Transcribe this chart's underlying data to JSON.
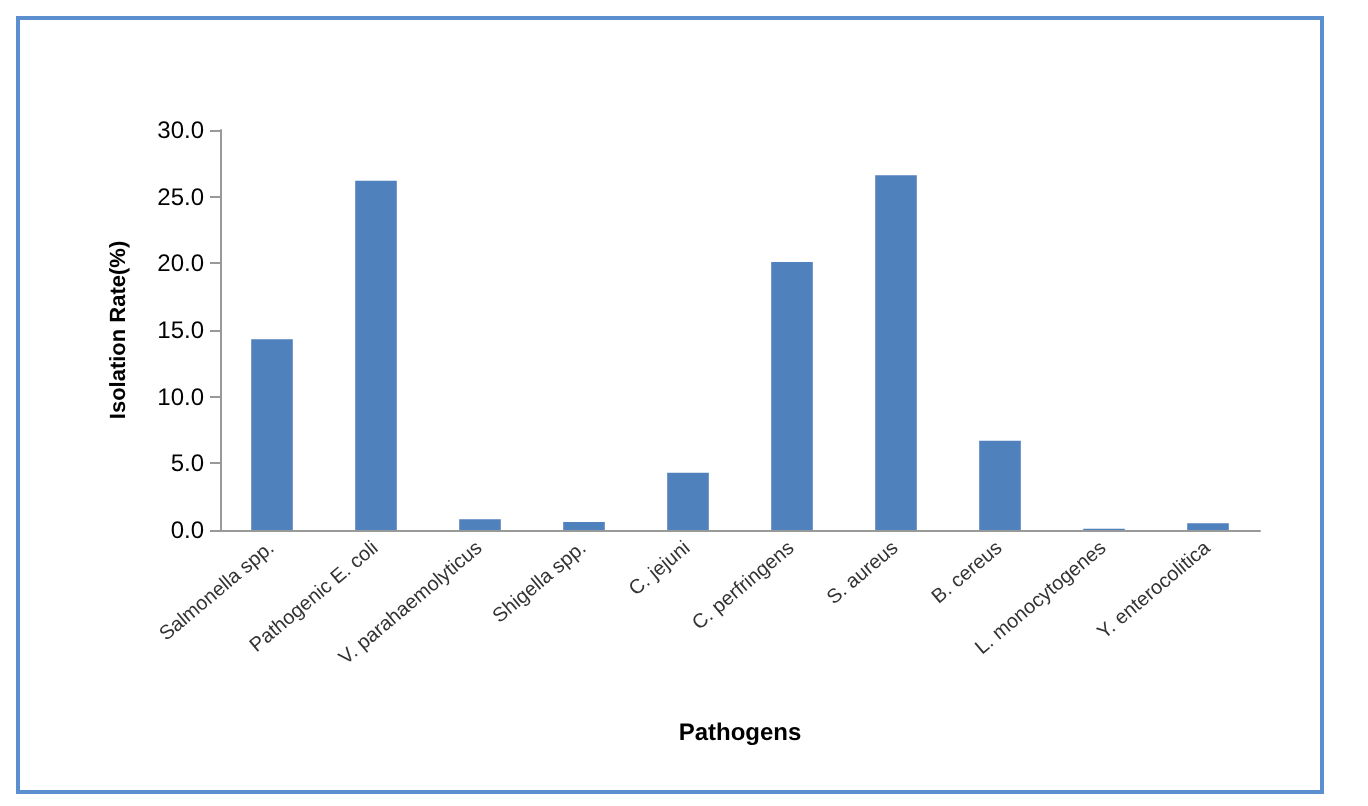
{
  "chart_data": {
    "type": "bar",
    "xlabel": "Pathogens",
    "ylabel": "Isolation Rate(%)",
    "categories": [
      "Salmonella spp.",
      "Pathogenic E. coli",
      "V. parahaemolyticus",
      "Shigella spp.",
      "C. jejuni",
      "C. perfringens",
      "S. aureus",
      "B. cereus",
      "L. monocytogenes",
      "Y. enterocolitica"
    ],
    "values": [
      14.3,
      26.2,
      0.8,
      0.6,
      4.3,
      20.1,
      26.6,
      6.7,
      0.1,
      0.5
    ],
    "color": "#4f81bd",
    "ylim": [
      0,
      30
    ],
    "yticks": [
      {
        "value": 0,
        "label": "0.0"
      },
      {
        "value": 5,
        "label": "5.0"
      },
      {
        "value": 10,
        "label": "10.0"
      },
      {
        "value": 15,
        "label": "15.0"
      },
      {
        "value": 20,
        "label": "20.0"
      },
      {
        "value": 25,
        "label": "25.0"
      },
      {
        "value": 30,
        "label": "30.0"
      }
    ],
    "grid": false
  }
}
